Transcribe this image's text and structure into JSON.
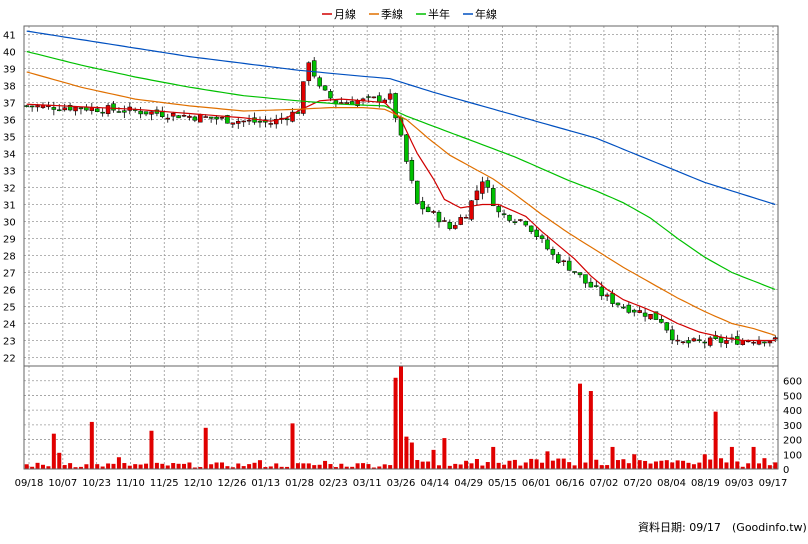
{
  "legend": {
    "items": [
      {
        "label": "月線",
        "color": "#d00000"
      },
      {
        "label": "季線",
        "color": "#e07000"
      },
      {
        "label": "半年",
        "color": "#00c000"
      },
      {
        "label": "年線",
        "color": "#0050c0"
      }
    ]
  },
  "footer": {
    "date_label": "資料日期: 09/17",
    "source": "(Goodinfo.tw)"
  },
  "chart_data": [
    {
      "type": "candlestick",
      "title": "",
      "ylim": [
        21.5,
        41.5
      ],
      "y_ticks": [
        22,
        23,
        24,
        25,
        26,
        27,
        28,
        29,
        30,
        31,
        32,
        33,
        34,
        35,
        36,
        37,
        38,
        39,
        40,
        41
      ],
      "x_tick_labels": [
        "09/18",
        "10/07",
        "10/23",
        "11/10",
        "11/25",
        "12/10",
        "12/26",
        "01/13",
        "01/28",
        "02/23",
        "03/11",
        "03/26",
        "04/14",
        "04/29",
        "05/15",
        "06/01",
        "06/16",
        "07/02",
        "07/20",
        "08/04",
        "08/19",
        "09/03",
        "09/17"
      ],
      "grid": true,
      "close_keypoints": [
        [
          0,
          36.8
        ],
        [
          10,
          36.7
        ],
        [
          20,
          36.5
        ],
        [
          30,
          36.2
        ],
        [
          40,
          35.9
        ],
        [
          45,
          35.8
        ],
        [
          50,
          36.5
        ],
        [
          52,
          39.5
        ],
        [
          54,
          37.8
        ],
        [
          57,
          37.0
        ],
        [
          62,
          37.1
        ],
        [
          67,
          37.3
        ],
        [
          68,
          36.2
        ],
        [
          70,
          33.5
        ],
        [
          72,
          31.0
        ],
        [
          76,
          30.2
        ],
        [
          78,
          29.6
        ],
        [
          81,
          30.5
        ],
        [
          84,
          32.5
        ],
        [
          87,
          30.5
        ],
        [
          92,
          30.0
        ],
        [
          97,
          28.0
        ],
        [
          101,
          27.1
        ],
        [
          103,
          26.4
        ],
        [
          107,
          25.5
        ],
        [
          110,
          25.0
        ],
        [
          114,
          24.6
        ],
        [
          117,
          24.2
        ],
        [
          120,
          22.8
        ],
        [
          124,
          22.9
        ],
        [
          131,
          23.0
        ],
        [
          135,
          23.1
        ],
        [
          138,
          23.0
        ]
      ],
      "ma_series": [
        {
          "name": "月線",
          "color": "#d00000",
          "points": [
            [
              0,
              36.9
            ],
            [
              20,
              36.6
            ],
            [
              40,
              36.1
            ],
            [
              45,
              35.9
            ],
            [
              48,
              36.1
            ],
            [
              50,
              36.5
            ],
            [
              54,
              37.1
            ],
            [
              58,
              37.2
            ],
            [
              62,
              37.1
            ],
            [
              66,
              37.0
            ],
            [
              69,
              36.0
            ],
            [
              72,
              34.0
            ],
            [
              75,
              32.5
            ],
            [
              77,
              31.3
            ],
            [
              80,
              30.8
            ],
            [
              84,
              31.0
            ],
            [
              87,
              31.0
            ],
            [
              92,
              30.3
            ],
            [
              95,
              29.4
            ],
            [
              98,
              28.6
            ],
            [
              101,
              27.8
            ],
            [
              104,
              26.8
            ],
            [
              107,
              26.0
            ],
            [
              110,
              25.4
            ],
            [
              114,
              24.9
            ],
            [
              117,
              24.5
            ],
            [
              120,
              24.0
            ],
            [
              124,
              23.5
            ],
            [
              128,
              23.2
            ],
            [
              132,
              23.0
            ],
            [
              138,
              23.0
            ]
          ]
        },
        {
          "name": "季線",
          "color": "#e07000",
          "points": [
            [
              0,
              38.8
            ],
            [
              10,
              37.9
            ],
            [
              20,
              37.2
            ],
            [
              30,
              36.8
            ],
            [
              40,
              36.5
            ],
            [
              50,
              36.6
            ],
            [
              56,
              36.7
            ],
            [
              62,
              36.7
            ],
            [
              66,
              36.6
            ],
            [
              70,
              36.0
            ],
            [
              74,
              34.9
            ],
            [
              78,
              33.9
            ],
            [
              82,
              33.2
            ],
            [
              86,
              32.5
            ],
            [
              90,
              31.6
            ],
            [
              95,
              30.4
            ],
            [
              100,
              29.3
            ],
            [
              105,
              28.3
            ],
            [
              110,
              27.3
            ],
            [
              115,
              26.4
            ],
            [
              120,
              25.5
            ],
            [
              125,
              24.7
            ],
            [
              130,
              24.0
            ],
            [
              134,
              23.7
            ],
            [
              138,
              23.3
            ]
          ]
        },
        {
          "name": "半年",
          "color": "#00c000",
          "points": [
            [
              0,
              40.0
            ],
            [
              10,
              39.2
            ],
            [
              20,
              38.5
            ],
            [
              30,
              37.9
            ],
            [
              40,
              37.4
            ],
            [
              50,
              37.1
            ],
            [
              58,
              36.9
            ],
            [
              66,
              36.8
            ],
            [
              70,
              36.2
            ],
            [
              75,
              35.6
            ],
            [
              80,
              35.0
            ],
            [
              85,
              34.4
            ],
            [
              90,
              33.8
            ],
            [
              95,
              33.1
            ],
            [
              100,
              32.4
            ],
            [
              105,
              31.8
            ],
            [
              110,
              31.1
            ],
            [
              115,
              30.2
            ],
            [
              120,
              29.0
            ],
            [
              125,
              27.9
            ],
            [
              130,
              27.0
            ],
            [
              134,
              26.5
            ],
            [
              138,
              26.0
            ]
          ]
        },
        {
          "name": "年線",
          "color": "#0050c0",
          "points": [
            [
              0,
              41.2
            ],
            [
              10,
              40.7
            ],
            [
              20,
              40.2
            ],
            [
              30,
              39.7
            ],
            [
              40,
              39.3
            ],
            [
              50,
              38.9
            ],
            [
              60,
              38.6
            ],
            [
              67,
              38.4
            ],
            [
              75,
              37.6
            ],
            [
              85,
              36.7
            ],
            [
              95,
              35.8
            ],
            [
              105,
              34.9
            ],
            [
              115,
              33.6
            ],
            [
              125,
              32.3
            ],
            [
              138,
              31.0
            ]
          ]
        }
      ]
    },
    {
      "type": "bar",
      "title": "",
      "ylim": [
        0,
        700
      ],
      "y_ticks": [
        0,
        100,
        200,
        300,
        400,
        500,
        600
      ],
      "x_tick_labels": [
        "09/18",
        "10/07",
        "10/23",
        "11/10",
        "11/25",
        "12/10",
        "12/26",
        "01/13",
        "01/28",
        "02/23",
        "03/11",
        "03/26",
        "04/14",
        "04/29",
        "05/15",
        "06/01",
        "06/16",
        "07/02",
        "07/20",
        "08/04",
        "08/19",
        "09/03",
        "09/17"
      ],
      "spikes": [
        [
          5,
          240
        ],
        [
          6,
          110
        ],
        [
          8,
          40
        ],
        [
          12,
          320
        ],
        [
          17,
          80
        ],
        [
          23,
          260
        ],
        [
          33,
          280
        ],
        [
          43,
          60
        ],
        [
          49,
          310
        ],
        [
          55,
          55
        ],
        [
          62,
          40
        ],
        [
          68,
          620
        ],
        [
          69,
          700
        ],
        [
          70,
          220
        ],
        [
          71,
          180
        ],
        [
          75,
          130
        ],
        [
          77,
          210
        ],
        [
          86,
          150
        ],
        [
          96,
          120
        ],
        [
          102,
          580
        ],
        [
          104,
          530
        ],
        [
          108,
          150
        ],
        [
          112,
          100
        ],
        [
          118,
          60
        ],
        [
          125,
          100
        ],
        [
          127,
          390
        ],
        [
          130,
          150
        ],
        [
          134,
          150
        ]
      ]
    }
  ]
}
